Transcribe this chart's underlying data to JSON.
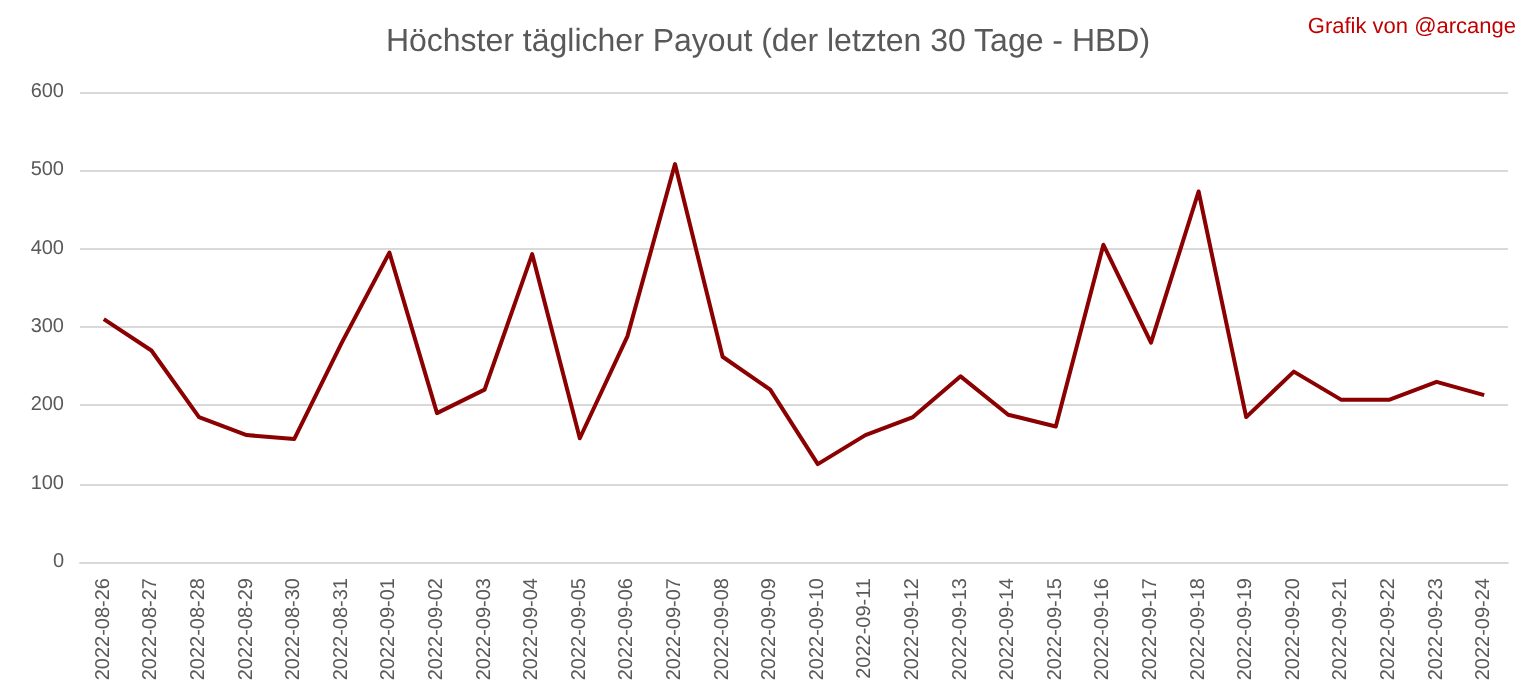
{
  "chart_data": {
    "type": "line",
    "title": "Höchster täglicher Payout (der letzten 30 Tage - HBD)",
    "annotations": [
      "Grafik von @arcange"
    ],
    "categories": [
      "2022-08-26",
      "2022-08-27",
      "2022-08-28",
      "2022-08-29",
      "2022-08-30",
      "2022-08-31",
      "2022-09-01",
      "2022-09-02",
      "2022-09-03",
      "2022-09-04",
      "2022-09-05",
      "2022-09-06",
      "2022-09-07",
      "2022-09-08",
      "2022-09-09",
      "2022-09-10",
      "2022-09-11",
      "2022-09-12",
      "2022-09-13",
      "2022-09-14",
      "2022-09-15",
      "2022-09-16",
      "2022-09-17",
      "2022-09-18",
      "2022-09-19",
      "2022-09-20",
      "2022-09-21",
      "2022-09-22",
      "2022-09-23",
      "2022-09-24"
    ],
    "series": [
      {
        "color": "#8b0000",
        "values": [
          310,
          270,
          185,
          162,
          157,
          280,
          395,
          190,
          220,
          393,
          158,
          288,
          508,
          262,
          220,
          125,
          162,
          185,
          237,
          188,
          173,
          405,
          280,
          473,
          185,
          243,
          207,
          207,
          230,
          213
        ]
      }
    ],
    "ylim": [
      0,
      600
    ],
    "yticks": [
      0,
      100,
      200,
      300,
      400,
      500,
      600
    ],
    "grid": "y",
    "marker": "none",
    "line_style": "solid"
  }
}
